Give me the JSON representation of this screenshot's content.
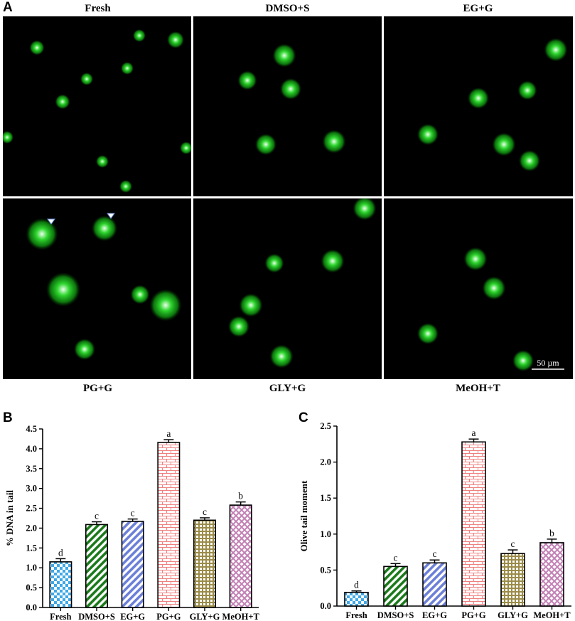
{
  "panel_a": {
    "letter": "A",
    "top_labels": [
      "Fresh",
      "DMSO+S",
      "EG+G"
    ],
    "bottom_labels": [
      "PG+G",
      "GLY+G",
      "MeOH+T"
    ],
    "scale_bar_label": "50 µm",
    "image_color": "#2fd62f"
  },
  "chart_data": [
    {
      "panel": "B",
      "type": "bar",
      "ylabel": "% DNA in tail",
      "xlabel": "",
      "categories": [
        "Fresh",
        "DMSO+S",
        "EG+G",
        "PG+G",
        "GLY+G",
        "MeOH+T"
      ],
      "values": [
        1.15,
        2.09,
        2.17,
        4.16,
        2.2,
        2.58
      ],
      "errors": [
        0.08,
        0.07,
        0.06,
        0.07,
        0.06,
        0.08
      ],
      "significance": [
        "d",
        "c",
        "c",
        "a",
        "c",
        "b"
      ],
      "ylim": [
        0,
        4.5
      ],
      "yticks": [
        "0.0",
        "0.5",
        "1.0",
        "1.5",
        "2.0",
        "2.5",
        "3.0",
        "3.5",
        "4.0",
        "4.5"
      ],
      "grid": false
    },
    {
      "panel": "C",
      "type": "bar",
      "ylabel": "Olive tail moment",
      "xlabel": "",
      "categories": [
        "Fresh",
        "DMSO+S",
        "EG+G",
        "PG+G",
        "GLY+G",
        "MeOH+T"
      ],
      "values": [
        0.19,
        0.55,
        0.6,
        2.28,
        0.73,
        0.88
      ],
      "errors": [
        0.02,
        0.04,
        0.04,
        0.04,
        0.05,
        0.05
      ],
      "significance": [
        "d",
        "c",
        "c",
        "a",
        "c",
        "b"
      ],
      "ylim": [
        0,
        2.5
      ],
      "yticks": [
        "0.0",
        "0.5",
        "1.0",
        "1.5",
        "2.0",
        "2.5"
      ],
      "grid": false
    }
  ],
  "bar_styles": [
    {
      "name": "checker",
      "color": "#3fa8e8"
    },
    {
      "name": "diagonal",
      "color": "#1a7a1a"
    },
    {
      "name": "diagonal",
      "color": "#6c7fd8"
    },
    {
      "name": "brick",
      "color": "#f08080"
    },
    {
      "name": "grid",
      "color": "#9b8c4a"
    },
    {
      "name": "cross",
      "color": "#c27fb4"
    }
  ]
}
